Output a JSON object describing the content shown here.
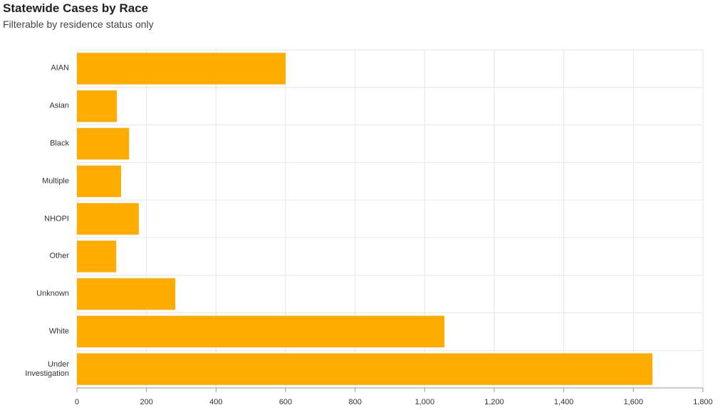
{
  "chart_data": {
    "type": "bar",
    "orientation": "horizontal",
    "title": "Statewide Cases by Race",
    "subtitle": "Filterable by residence status only",
    "categories": [
      "AIAN",
      "Asian",
      "Black",
      "Multiple",
      "NHOPI",
      "Other",
      "Unknown",
      "White",
      "Under Investigation"
    ],
    "values": [
      600,
      115,
      150,
      127,
      178,
      113,
      283,
      1057,
      1655
    ],
    "color": "#ffab00",
    "xlim": [
      0,
      1800
    ],
    "xticks": [
      0,
      200,
      400,
      600,
      800,
      {
        "value": 1000,
        "label": "1,000"
      },
      {
        "value": 1200,
        "label": "1,200"
      },
      {
        "value": 1400,
        "label": "1,400"
      },
      {
        "value": 1600,
        "label": "1,600"
      },
      {
        "value": 1800,
        "label": "1,800"
      }
    ],
    "grid": true
  }
}
